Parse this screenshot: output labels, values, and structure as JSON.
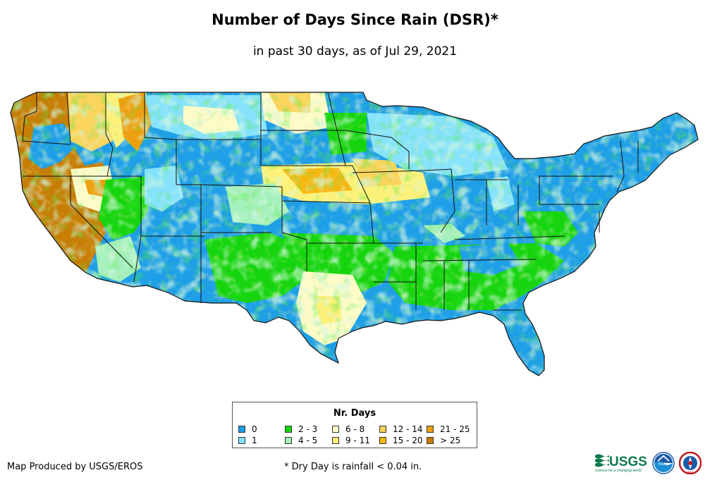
{
  "title": "Number of Days Since Rain (DSR)*",
  "subtitle": "in past 30 days, as of Jul 29, 2021",
  "legend": {
    "title": "Nr. Days",
    "items": [
      {
        "label": "0",
        "color": "#1e9fe8"
      },
      {
        "label": "1",
        "color": "#86e3fb"
      },
      {
        "label": "2 - 3",
        "color": "#16d40e"
      },
      {
        "label": "4 - 5",
        "color": "#a6f0bd"
      },
      {
        "label": "6 - 8",
        "color": "#fefbc8"
      },
      {
        "label": "9 - 11",
        "color": "#fef17a"
      },
      {
        "label": "12 - 14",
        "color": "#fbd45b"
      },
      {
        "label": "15 - 20",
        "color": "#f6b812"
      },
      {
        "label": "21 - 25",
        "color": "#ee9f10"
      },
      {
        "label": "> 25",
        "color": "#c87d05"
      }
    ]
  },
  "credit": "Map Produced by USGS/EROS",
  "footnote": "* Dry Day is rainfall < 0.04 in.",
  "logos": {
    "usgs": {
      "text": "USGS",
      "tagline": "science for a changing world",
      "color": "#0b7a4b"
    },
    "noaa": {
      "text": "noaa"
    },
    "nws": {
      "text": "NWS"
    }
  }
}
